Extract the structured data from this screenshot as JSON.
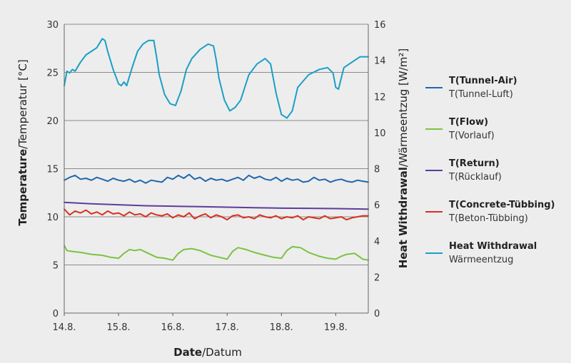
{
  "chart_data": {
    "type": "line",
    "xlabel": {
      "bold": "Date",
      "rest": "/Datum"
    },
    "ylabel_left": {
      "bold": "Temperature",
      "rest": "/Temperatur [°C]"
    },
    "ylabel_right": {
      "bold": "Heat Withdrawal",
      "rest": "/Wärmeentzug [W/m²]"
    },
    "x_ticks": [
      "14.8.",
      "15.8.",
      "16.8.",
      "17.8.",
      "18.8.",
      "19.8."
    ],
    "x_range_days": [
      0,
      5.6
    ],
    "y_left": {
      "ticks": [
        0,
        5,
        10,
        15,
        20,
        25,
        30
      ],
      "range": [
        0,
        30
      ]
    },
    "y_right": {
      "ticks": [
        0,
        2,
        4,
        6,
        8,
        10,
        12,
        14,
        16
      ],
      "range": [
        0,
        16
      ]
    },
    "grid": "horizontal",
    "legend_position": "right",
    "series": [
      {
        "name": "T(Tunnel-Air)",
        "name_de": "T(Tunnel-Luft)",
        "color": "#2166ac",
        "axis": "left",
        "x": [
          0,
          0.1,
          0.2,
          0.3,
          0.4,
          0.5,
          0.6,
          0.7,
          0.8,
          0.9,
          1.0,
          1.1,
          1.2,
          1.3,
          1.4,
          1.5,
          1.6,
          1.7,
          1.8,
          1.9,
          2.0,
          2.1,
          2.2,
          2.3,
          2.4,
          2.5,
          2.6,
          2.7,
          2.8,
          2.9,
          3.0,
          3.1,
          3.2,
          3.3,
          3.4,
          3.5,
          3.6,
          3.7,
          3.8,
          3.9,
          4.0,
          4.1,
          4.2,
          4.3,
          4.4,
          4.5,
          4.6,
          4.7,
          4.8,
          4.9,
          5.0,
          5.1,
          5.2,
          5.3,
          5.4,
          5.5,
          5.6
        ],
        "y": [
          13.8,
          14.1,
          14.3,
          13.9,
          14.0,
          13.8,
          14.1,
          13.9,
          13.7,
          14.0,
          13.8,
          13.7,
          13.9,
          13.6,
          13.8,
          13.5,
          13.8,
          13.7,
          13.6,
          14.1,
          13.9,
          14.3,
          14.0,
          14.4,
          13.9,
          14.1,
          13.7,
          14.0,
          13.8,
          13.9,
          13.7,
          13.9,
          14.1,
          13.8,
          14.3,
          14.0,
          14.2,
          13.9,
          13.8,
          14.1,
          13.7,
          14.0,
          13.8,
          13.9,
          13.6,
          13.7,
          14.1,
          13.8,
          13.9,
          13.6,
          13.8,
          13.9,
          13.7,
          13.6,
          13.8,
          13.7,
          13.6
        ]
      },
      {
        "name": "T(Flow)",
        "name_de": "T(Vorlauf)",
        "color": "#7cc242",
        "axis": "left",
        "x": [
          0,
          0.05,
          0.15,
          0.3,
          0.5,
          0.7,
          0.85,
          1.0,
          1.1,
          1.2,
          1.3,
          1.4,
          1.55,
          1.7,
          1.85,
          2.0,
          2.1,
          2.2,
          2.35,
          2.5,
          2.7,
          2.85,
          3.0,
          3.1,
          3.2,
          3.35,
          3.5,
          3.7,
          3.85,
          4.0,
          4.1,
          4.2,
          4.35,
          4.5,
          4.7,
          4.85,
          5.0,
          5.1,
          5.2,
          5.35,
          5.5,
          5.6
        ],
        "y": [
          7.0,
          6.5,
          6.4,
          6.3,
          6.1,
          6.0,
          5.8,
          5.7,
          6.2,
          6.6,
          6.5,
          6.6,
          6.2,
          5.8,
          5.7,
          5.5,
          6.2,
          6.6,
          6.7,
          6.5,
          6.0,
          5.8,
          5.6,
          6.4,
          6.8,
          6.6,
          6.3,
          6.0,
          5.8,
          5.7,
          6.5,
          6.9,
          6.8,
          6.3,
          5.9,
          5.7,
          5.6,
          5.9,
          6.1,
          6.2,
          5.6,
          5.5
        ]
      },
      {
        "name": "T(Return)",
        "name_de": "T(Rücklauf)",
        "color": "#5e3c99",
        "axis": "left",
        "x": [
          0,
          0.5,
          1.0,
          1.5,
          2.0,
          2.5,
          3.0,
          3.5,
          4.0,
          4.5,
          5.0,
          5.6
        ],
        "y": [
          11.5,
          11.35,
          11.25,
          11.15,
          11.1,
          11.05,
          11.0,
          10.95,
          10.9,
          10.88,
          10.85,
          10.8
        ]
      },
      {
        "name": "T(Concrete-Tübbing)",
        "name_de": "T(Beton-Tübbing)",
        "color": "#d7301f",
        "axis": "left",
        "x": [
          0,
          0.1,
          0.2,
          0.3,
          0.4,
          0.5,
          0.6,
          0.7,
          0.8,
          0.9,
          1.0,
          1.1,
          1.2,
          1.3,
          1.4,
          1.5,
          1.6,
          1.7,
          1.8,
          1.9,
          2.0,
          2.1,
          2.2,
          2.3,
          2.4,
          2.5,
          2.6,
          2.7,
          2.8,
          2.9,
          3.0,
          3.1,
          3.2,
          3.3,
          3.4,
          3.5,
          3.6,
          3.7,
          3.8,
          3.9,
          4.0,
          4.1,
          4.2,
          4.3,
          4.4,
          4.5,
          4.6,
          4.7,
          4.8,
          4.9,
          5.0,
          5.1,
          5.2,
          5.3,
          5.4,
          5.5,
          5.6
        ],
        "y": [
          10.8,
          10.2,
          10.6,
          10.4,
          10.7,
          10.3,
          10.5,
          10.2,
          10.6,
          10.3,
          10.4,
          10.1,
          10.5,
          10.2,
          10.3,
          10.0,
          10.4,
          10.2,
          10.1,
          10.3,
          9.9,
          10.2,
          10.0,
          10.4,
          9.8,
          10.1,
          10.3,
          9.9,
          10.2,
          10.0,
          9.7,
          10.1,
          10.2,
          9.9,
          10.0,
          9.8,
          10.2,
          10.0,
          9.9,
          10.1,
          9.8,
          10.0,
          9.9,
          10.1,
          9.7,
          10.0,
          9.9,
          9.8,
          10.1,
          9.8,
          9.9,
          10.0,
          9.7,
          9.9,
          10.0,
          10.1,
          10.1
        ]
      },
      {
        "name": "Heat Withdrawal",
        "name_de": "Wärmeentzug",
        "color": "#1b9fc5",
        "axis": "right",
        "x": [
          0,
          0.05,
          0.1,
          0.15,
          0.2,
          0.3,
          0.4,
          0.5,
          0.6,
          0.7,
          0.75,
          0.8,
          0.9,
          1.0,
          1.05,
          1.1,
          1.15,
          1.25,
          1.35,
          1.45,
          1.55,
          1.65,
          1.7,
          1.75,
          1.85,
          1.95,
          2.05,
          2.15,
          2.25,
          2.35,
          2.5,
          2.65,
          2.75,
          2.8,
          2.85,
          2.95,
          3.05,
          3.15,
          3.25,
          3.4,
          3.55,
          3.7,
          3.8,
          3.85,
          3.9,
          4.0,
          4.1,
          4.2,
          4.3,
          4.5,
          4.7,
          4.85,
          4.95,
          5.0,
          5.05,
          5.15,
          5.25,
          5.35,
          5.45,
          5.6
        ],
        "y": [
          12.6,
          13.4,
          13.3,
          13.5,
          13.4,
          13.9,
          14.3,
          14.5,
          14.7,
          15.2,
          15.1,
          14.5,
          13.5,
          12.7,
          12.6,
          12.8,
          12.6,
          13.6,
          14.5,
          14.9,
          15.1,
          15.1,
          14.2,
          13.2,
          12.1,
          11.6,
          11.5,
          12.3,
          13.5,
          14.1,
          14.6,
          14.9,
          14.8,
          14.0,
          13.0,
          11.8,
          11.2,
          11.4,
          11.8,
          13.2,
          13.8,
          14.1,
          13.8,
          13.0,
          12.2,
          11.0,
          10.8,
          11.2,
          12.5,
          13.2,
          13.5,
          13.6,
          13.3,
          12.5,
          12.4,
          13.6,
          13.8,
          14.0,
          14.2,
          14.2
        ]
      }
    ]
  }
}
